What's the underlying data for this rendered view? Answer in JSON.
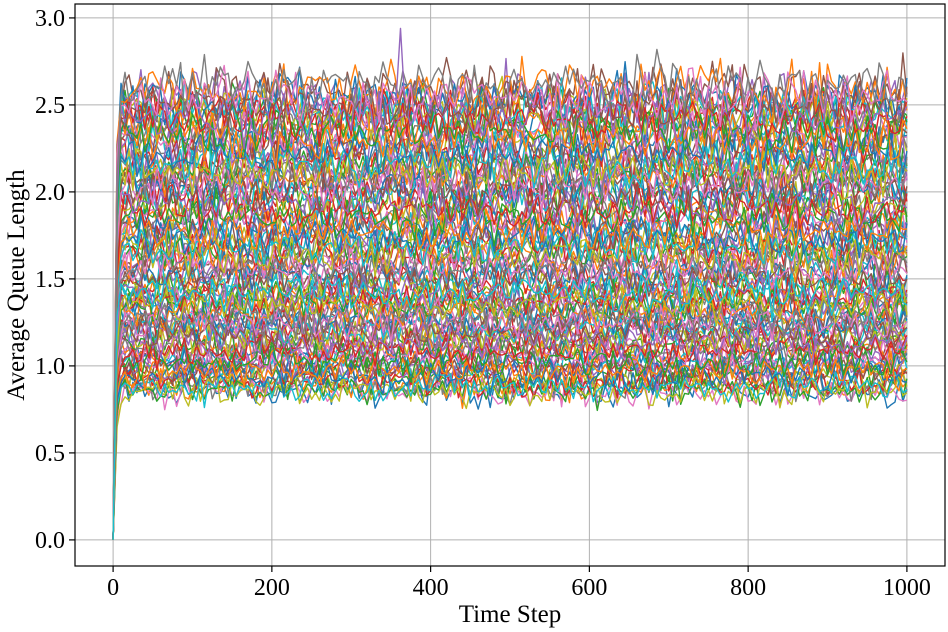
{
  "chart_data": {
    "type": "line",
    "title": "",
    "xlabel": "Time Step",
    "ylabel": "Average Queue Length",
    "xlim": [
      -48,
      1048
    ],
    "ylim": [
      -0.15,
      3.08
    ],
    "xticks": [
      "0",
      "200",
      "400",
      "600",
      "800",
      "1000"
    ],
    "xtick_values": [
      0,
      200,
      400,
      600,
      800,
      1000
    ],
    "yticks": [
      "0.0",
      "0.5",
      "1.0",
      "1.5",
      "2.0",
      "2.5",
      "3.0"
    ],
    "ytick_values": [
      0.0,
      0.5,
      1.0,
      1.5,
      2.0,
      2.5,
      3.0
    ],
    "grid": true,
    "legend": "none",
    "colors": [
      "#1f77b4",
      "#ff7f0e",
      "#2ca02c",
      "#d62728",
      "#9467bd",
      "#8c564b",
      "#e377c2",
      "#7f7f7f",
      "#bcbd22",
      "#17becf"
    ],
    "series_summary": {
      "x_range": [
        0,
        1000
      ],
      "start_value": 0.0,
      "steady_state_band": [
        0.7,
        2.8
      ],
      "peak_value": 2.94,
      "peak_x": 362,
      "min_steady_value": 0.65,
      "approx_series_count": 120,
      "steady_means": [
        0.85,
        0.9,
        0.95,
        1.0,
        1.05,
        1.1,
        1.15,
        1.2,
        1.25,
        1.3,
        1.35,
        1.4,
        1.45,
        1.5,
        1.55,
        1.6,
        1.65,
        1.7,
        1.75,
        1.8,
        1.85,
        1.9,
        1.95,
        2.0,
        2.05,
        2.1,
        2.15,
        2.2,
        2.25,
        2.3,
        2.35,
        2.4,
        2.45,
        2.5,
        2.55,
        2.6
      ]
    }
  }
}
